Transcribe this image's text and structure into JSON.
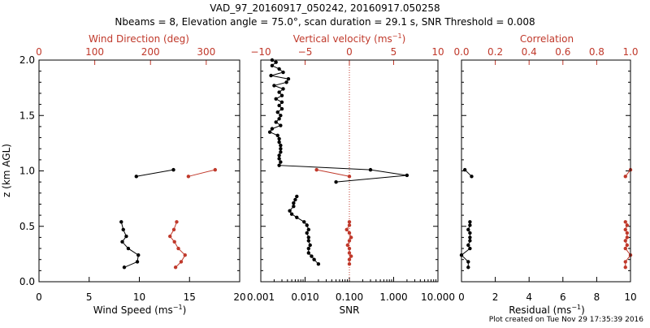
{
  "title": {
    "line1": "VAD_97_20160917_050242, 20160917.050258",
    "line2": "Nbeams = 8, Elevation angle = 75.0°, scan duration = 29.1 s, SNR Threshold = 0.008"
  },
  "footer": "Plot created on Tue Nov 29 17:35:39 2016",
  "colors": {
    "primary": "#000000",
    "secondary": "#c0392b"
  },
  "chart_data": [
    {
      "type": "line",
      "ylabel": "z (km AGL)",
      "ylim": [
        0,
        2
      ],
      "yticks": [
        "0.0",
        "0.5",
        "1.0",
        "1.5",
        "2.0"
      ],
      "xlabel_bottom": "Wind Speed (ms",
      "xlabel_bottom_sup": "−1",
      "xlabel_bottom_tail": ")",
      "xlim_bottom": [
        0,
        20
      ],
      "xticks_bottom": [
        "0",
        "5",
        "10",
        "15",
        "20"
      ],
      "xlabel_top": "Wind Direction (deg)",
      "xlim_top": [
        0,
        360
      ],
      "xticks_top": [
        "0",
        "100",
        "200",
        "300"
      ],
      "series": [
        {
          "axis": "bottom",
          "color": "black",
          "segments": [
            [
              [
                9.7,
                0.95
              ],
              [
                13.4,
                1.01
              ]
            ],
            [
              [
                8.5,
                0.13
              ],
              [
                9.8,
                0.18
              ],
              [
                9.9,
                0.24
              ],
              [
                8.9,
                0.3
              ],
              [
                8.3,
                0.36
              ],
              [
                8.7,
                0.41
              ],
              [
                8.4,
                0.47
              ],
              [
                8.2,
                0.54
              ]
            ]
          ]
        },
        {
          "axis": "top",
          "color": "red",
          "segments": [
            [
              [
                268,
                0.95
              ],
              [
                316,
                1.01
              ]
            ],
            [
              [
                245,
                0.13
              ],
              [
                255,
                0.18
              ],
              [
                262,
                0.24
              ],
              [
                250,
                0.3
              ],
              [
                243,
                0.36
              ],
              [
                235,
                0.41
              ],
              [
                242,
                0.47
              ],
              [
                247,
                0.54
              ]
            ]
          ]
        }
      ]
    },
    {
      "type": "line",
      "ylim": [
        0,
        2
      ],
      "xlabel_bottom": "SNR",
      "xscale_bottom": "log",
      "xlim_bottom": [
        0.001,
        10
      ],
      "xticks_bottom": [
        "0.001",
        "0.010",
        "0.100",
        "1.000",
        "10.000"
      ],
      "xticks_bottom_values": [
        0.001,
        0.01,
        0.1,
        1,
        10
      ],
      "xlabel_top": "Vertical velocity (ms",
      "xlabel_top_sup": "−1",
      "xlabel_top_tail": ")",
      "xlim_top": [
        -10,
        10
      ],
      "xticks_top": [
        "−10",
        "−5",
        "0",
        "5",
        "10"
      ],
      "xticks_top_values": [
        -10,
        -5,
        0,
        5,
        10
      ],
      "reference_line": {
        "axis": "top",
        "value": 0,
        "style": "dotted"
      },
      "series": [
        {
          "axis": "bottom",
          "color": "black",
          "segments": [
            [
              [
                0.0018,
                2.0
              ],
              [
                0.0022,
                1.98
              ],
              [
                0.0018,
                1.95
              ],
              [
                0.0026,
                1.92
              ],
              [
                0.0032,
                1.89
              ],
              [
                0.0017,
                1.86
              ],
              [
                0.0042,
                1.83
              ],
              [
                0.0038,
                1.8
              ],
              [
                0.002,
                1.77
              ],
              [
                0.0032,
                1.74
              ],
              [
                0.0026,
                1.71
              ],
              [
                0.003,
                1.68
              ],
              [
                0.0022,
                1.65
              ],
              [
                0.003,
                1.62
              ],
              [
                0.0026,
                1.59
              ],
              [
                0.003,
                1.56
              ],
              [
                0.0024,
                1.53
              ],
              [
                0.0028,
                1.5
              ],
              [
                0.0026,
                1.47
              ],
              [
                0.0022,
                1.44
              ],
              [
                0.0028,
                1.41
              ],
              [
                0.0018,
                1.38
              ],
              [
                0.0016,
                1.35
              ],
              [
                0.0024,
                1.32
              ],
              [
                0.0026,
                1.29
              ],
              [
                0.0026,
                1.26
              ],
              [
                0.0028,
                1.23
              ],
              [
                0.0028,
                1.2
              ],
              [
                0.0028,
                1.17
              ],
              [
                0.0026,
                1.14
              ],
              [
                0.0026,
                1.11
              ],
              [
                0.0028,
                1.08
              ],
              [
                0.0026,
                1.05
              ],
              [
                0.3,
                1.01
              ],
              [
                2.0,
                0.96
              ],
              [
                0.05,
                0.9
              ]
            ],
            [
              [
                0.0065,
                0.77
              ],
              [
                0.006,
                0.74
              ],
              [
                0.0055,
                0.71
              ],
              [
                0.0055,
                0.68
              ],
              [
                0.0045,
                0.64
              ],
              [
                0.005,
                0.61
              ],
              [
                0.0065,
                0.58
              ],
              [
                0.0095,
                0.54
              ],
              [
                0.011,
                0.51
              ],
              [
                0.012,
                0.47
              ],
              [
                0.011,
                0.44
              ],
              [
                0.012,
                0.4
              ],
              [
                0.012,
                0.37
              ],
              [
                0.013,
                0.33
              ],
              [
                0.012,
                0.3
              ],
              [
                0.012,
                0.26
              ],
              [
                0.014,
                0.23
              ],
              [
                0.016,
                0.2
              ],
              [
                0.02,
                0.16
              ]
            ]
          ]
        },
        {
          "axis": "top",
          "color": "red",
          "segments": [
            [
              [
                -3.7,
                1.01
              ],
              [
                0,
                0.95
              ]
            ],
            [
              [
                0,
                0.54
              ],
              [
                0,
                0.51
              ],
              [
                -0.3,
                0.47
              ],
              [
                0,
                0.44
              ],
              [
                0.2,
                0.4
              ],
              [
                0,
                0.37
              ],
              [
                -0.2,
                0.33
              ],
              [
                0,
                0.3
              ],
              [
                0,
                0.26
              ],
              [
                0.2,
                0.23
              ],
              [
                0,
                0.2
              ],
              [
                0,
                0.16
              ]
            ]
          ]
        }
      ]
    },
    {
      "type": "line",
      "ylim": [
        0,
        2
      ],
      "xlabel_bottom": "Residual (ms",
      "xlabel_bottom_sup": "−1",
      "xlabel_bottom_tail": ")",
      "xlim_bottom": [
        0,
        10
      ],
      "xticks_bottom": [
        "0",
        "2",
        "4",
        "6",
        "8",
        "10"
      ],
      "xlabel_top": "Correlation",
      "xlim_top": [
        0,
        1
      ],
      "xticks_top": [
        "0.0",
        "0.2",
        "0.4",
        "0.6",
        "0.8",
        "1.0"
      ],
      "series": [
        {
          "axis": "bottom",
          "color": "black",
          "segments": [
            [
              [
                0.2,
                1.01
              ],
              [
                0.6,
                0.95
              ]
            ],
            [
              [
                0.5,
                0.54
              ],
              [
                0.5,
                0.51
              ],
              [
                0.4,
                0.47
              ],
              [
                0.5,
                0.44
              ],
              [
                0.5,
                0.4
              ],
              [
                0.5,
                0.37
              ],
              [
                0.4,
                0.33
              ],
              [
                0.5,
                0.3
              ],
              [
                0.0,
                0.24
              ],
              [
                0.4,
                0.18
              ],
              [
                0.4,
                0.13
              ]
            ]
          ]
        },
        {
          "axis": "top",
          "color": "red",
          "segments": [
            [
              [
                0.97,
                0.95
              ],
              [
                1.0,
                1.01
              ]
            ],
            [
              [
                0.97,
                0.54
              ],
              [
                0.98,
                0.51
              ],
              [
                0.97,
                0.47
              ],
              [
                0.98,
                0.44
              ],
              [
                0.98,
                0.4
              ],
              [
                0.97,
                0.37
              ],
              [
                0.98,
                0.33
              ],
              [
                0.97,
                0.3
              ],
              [
                1.0,
                0.24
              ],
              [
                0.97,
                0.18
              ],
              [
                0.97,
                0.13
              ]
            ]
          ]
        }
      ]
    }
  ]
}
